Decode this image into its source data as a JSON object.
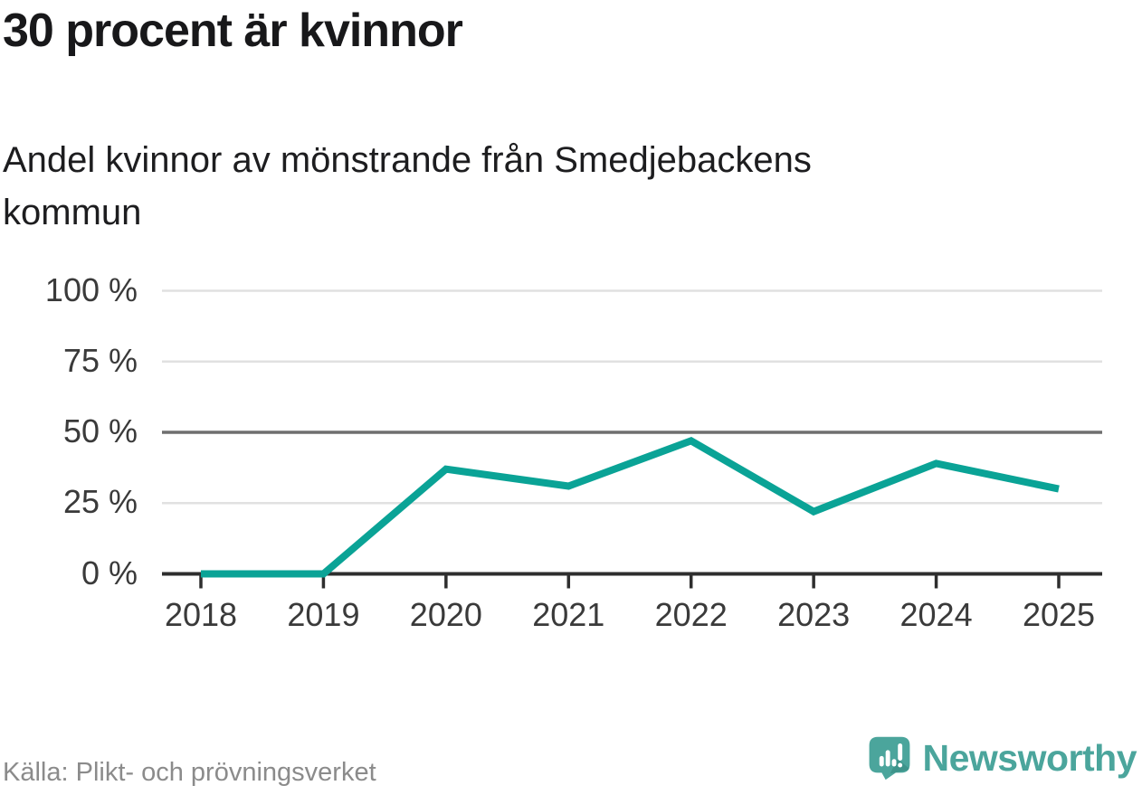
{
  "title": "30 procent är kvinnor",
  "subtitle": "Andel kvinnor av mönstrande från Smedjebackens\nkommun",
  "source": "Källa: Plikt- och prövningsverket",
  "branding": {
    "wordmark": "Newsworthy",
    "logo_icon": "newsworthy-speech-bubble-bar-chart-icon"
  },
  "colors": {
    "line": "#0aa396",
    "grid_light": "#e1e1e1",
    "grid_emphasis": "#6f6f6f",
    "axis": "#2e2e2e",
    "brand": "#4ba59c",
    "brand_dark": "#3e948b",
    "text": "#18181a",
    "muted": "#8b8b8b"
  },
  "chart_data": {
    "type": "line",
    "categories": [
      "2018",
      "2019",
      "2020",
      "2021",
      "2022",
      "2023",
      "2024",
      "2025"
    ],
    "values": [
      0,
      0,
      37,
      31,
      47,
      22,
      39,
      30
    ],
    "unit": "%",
    "title": "30 procent är kvinnor",
    "subtitle": "Andel kvinnor av mönstrande från Smedjebackens kommun",
    "xlabel": "",
    "ylabel": "",
    "ylim": [
      0,
      100
    ],
    "yticks": [
      0,
      25,
      50,
      75,
      100
    ],
    "ytick_labels": [
      "0 %",
      "25 %",
      "50 %",
      "75 %",
      "100 %"
    ],
    "reference_line": 50,
    "grid": "horizontal",
    "legend": "none",
    "series_color": "#0aa396"
  }
}
